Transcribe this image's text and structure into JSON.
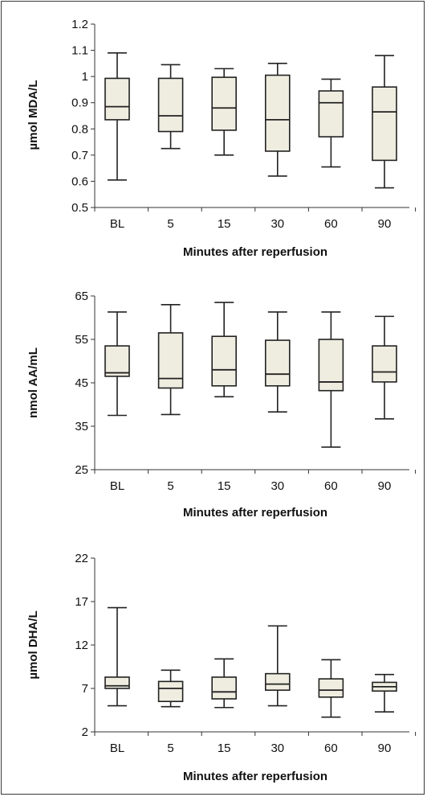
{
  "colors": {
    "box_fill": "#efede0",
    "stroke": "#222222",
    "background": "#ffffff"
  },
  "chart_data": [
    {
      "type": "box",
      "ylabel": "µmol MDA/L",
      "xlabel": "Minutes after reperfusion",
      "categories": [
        "BL",
        "5",
        "15",
        "30",
        "60",
        "90"
      ],
      "ylim": [
        0.5,
        1.2
      ],
      "yticks": [
        0.5,
        0.6,
        0.7,
        0.8,
        0.9,
        1,
        1.1,
        1.2
      ],
      "ytick_labels": [
        "0.5",
        "0.6",
        "0.7",
        "0.8",
        "0.9",
        "1",
        "1.1",
        "1.2"
      ],
      "boxes": [
        {
          "min": 0.605,
          "q1": 0.835,
          "median": 0.885,
          "q3": 0.993,
          "max": 1.09
        },
        {
          "min": 0.725,
          "q1": 0.79,
          "median": 0.85,
          "q3": 0.993,
          "max": 1.045
        },
        {
          "min": 0.7,
          "q1": 0.795,
          "median": 0.88,
          "q3": 0.997,
          "max": 1.03
        },
        {
          "min": 0.62,
          "q1": 0.715,
          "median": 0.835,
          "q3": 1.005,
          "max": 1.05
        },
        {
          "min": 0.655,
          "q1": 0.77,
          "median": 0.9,
          "q3": 0.945,
          "max": 0.99
        },
        {
          "min": 0.575,
          "q1": 0.68,
          "median": 0.865,
          "q3": 0.96,
          "max": 1.08
        }
      ]
    },
    {
      "type": "box",
      "ylabel": "nmol AA/mL",
      "xlabel": "Minutes after reperfusion",
      "categories": [
        "BL",
        "5",
        "15",
        "30",
        "60",
        "90"
      ],
      "ylim": [
        25,
        65
      ],
      "yticks": [
        25,
        35,
        45,
        55,
        65
      ],
      "ytick_labels": [
        "25",
        "35",
        "45",
        "55",
        "65"
      ],
      "boxes": [
        {
          "min": 37.5,
          "q1": 46.5,
          "median": 47.3,
          "q3": 53.5,
          "max": 61.3
        },
        {
          "min": 37.7,
          "q1": 43.8,
          "median": 46.0,
          "q3": 56.5,
          "max": 63.0
        },
        {
          "min": 41.8,
          "q1": 44.3,
          "median": 48.0,
          "q3": 55.7,
          "max": 63.5
        },
        {
          "min": 38.3,
          "q1": 44.3,
          "median": 47.0,
          "q3": 54.8,
          "max": 61.3
        },
        {
          "min": 30.2,
          "q1": 43.2,
          "median": 45.2,
          "q3": 55.0,
          "max": 61.3
        },
        {
          "min": 36.7,
          "q1": 45.2,
          "median": 47.5,
          "q3": 53.5,
          "max": 60.3
        }
      ]
    },
    {
      "type": "box",
      "ylabel": "µmol DHA/L",
      "xlabel": "Minutes after reperfusion",
      "categories": [
        "BL",
        "5",
        "15",
        "30",
        "60",
        "90"
      ],
      "ylim": [
        2,
        22
      ],
      "yticks": [
        2,
        7,
        12,
        17,
        22
      ],
      "ytick_labels": [
        "2",
        "7",
        "12",
        "17",
        "22"
      ],
      "boxes": [
        {
          "min": 5.0,
          "q1": 7.0,
          "median": 7.3,
          "q3": 8.3,
          "max": 16.3
        },
        {
          "min": 4.9,
          "q1": 5.5,
          "median": 7.0,
          "q3": 7.8,
          "max": 9.1
        },
        {
          "min": 4.8,
          "q1": 5.8,
          "median": 6.6,
          "q3": 8.3,
          "max": 10.4
        },
        {
          "min": 5.0,
          "q1": 6.8,
          "median": 7.5,
          "q3": 8.7,
          "max": 14.2
        },
        {
          "min": 3.7,
          "q1": 6.0,
          "median": 6.8,
          "q3": 8.1,
          "max": 10.3
        },
        {
          "min": 4.3,
          "q1": 6.7,
          "median": 7.2,
          "q3": 7.7,
          "max": 8.6
        }
      ]
    }
  ]
}
